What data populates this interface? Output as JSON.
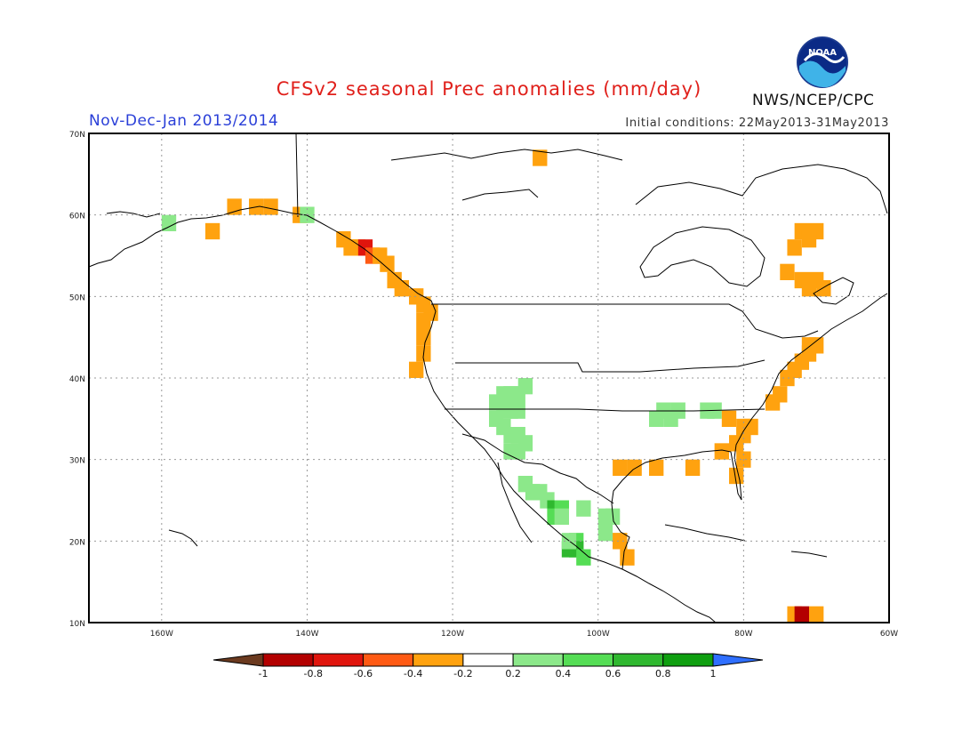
{
  "title": "CFSv2 seasonal Prec anomalies (mm/day)",
  "period": "Nov-Dec-Jan 2013/2014",
  "initial_conditions": "Initial conditions: 22May2013-31May2013",
  "agency": "NWS/NCEP/CPC",
  "logo_text": "NOAA",
  "map": {
    "region": "North America",
    "lon_range": [
      -170,
      -60
    ],
    "lat_range": [
      10,
      70
    ],
    "lat_labels": [
      "70N",
      "60N",
      "50N",
      "40N",
      "30N",
      "20N",
      "10N"
    ],
    "lon_labels": [
      "160W",
      "140W",
      "120W",
      "100W",
      "80W",
      "60W"
    ],
    "grid": true
  },
  "colorbar": {
    "labels": [
      "-1",
      "-0.8",
      "-0.6",
      "-0.4",
      "-0.2",
      "0.2",
      "0.4",
      "0.6",
      "0.8",
      "1"
    ],
    "colors": [
      "#6b3a1f",
      "#b30000",
      "#e0150d",
      "#ff5a14",
      "#ffa20f",
      "#ffffff",
      "#8ce88a",
      "#55dd55",
      "#2fb82f",
      "#0f9f10",
      "#2f6fff"
    ]
  }
}
